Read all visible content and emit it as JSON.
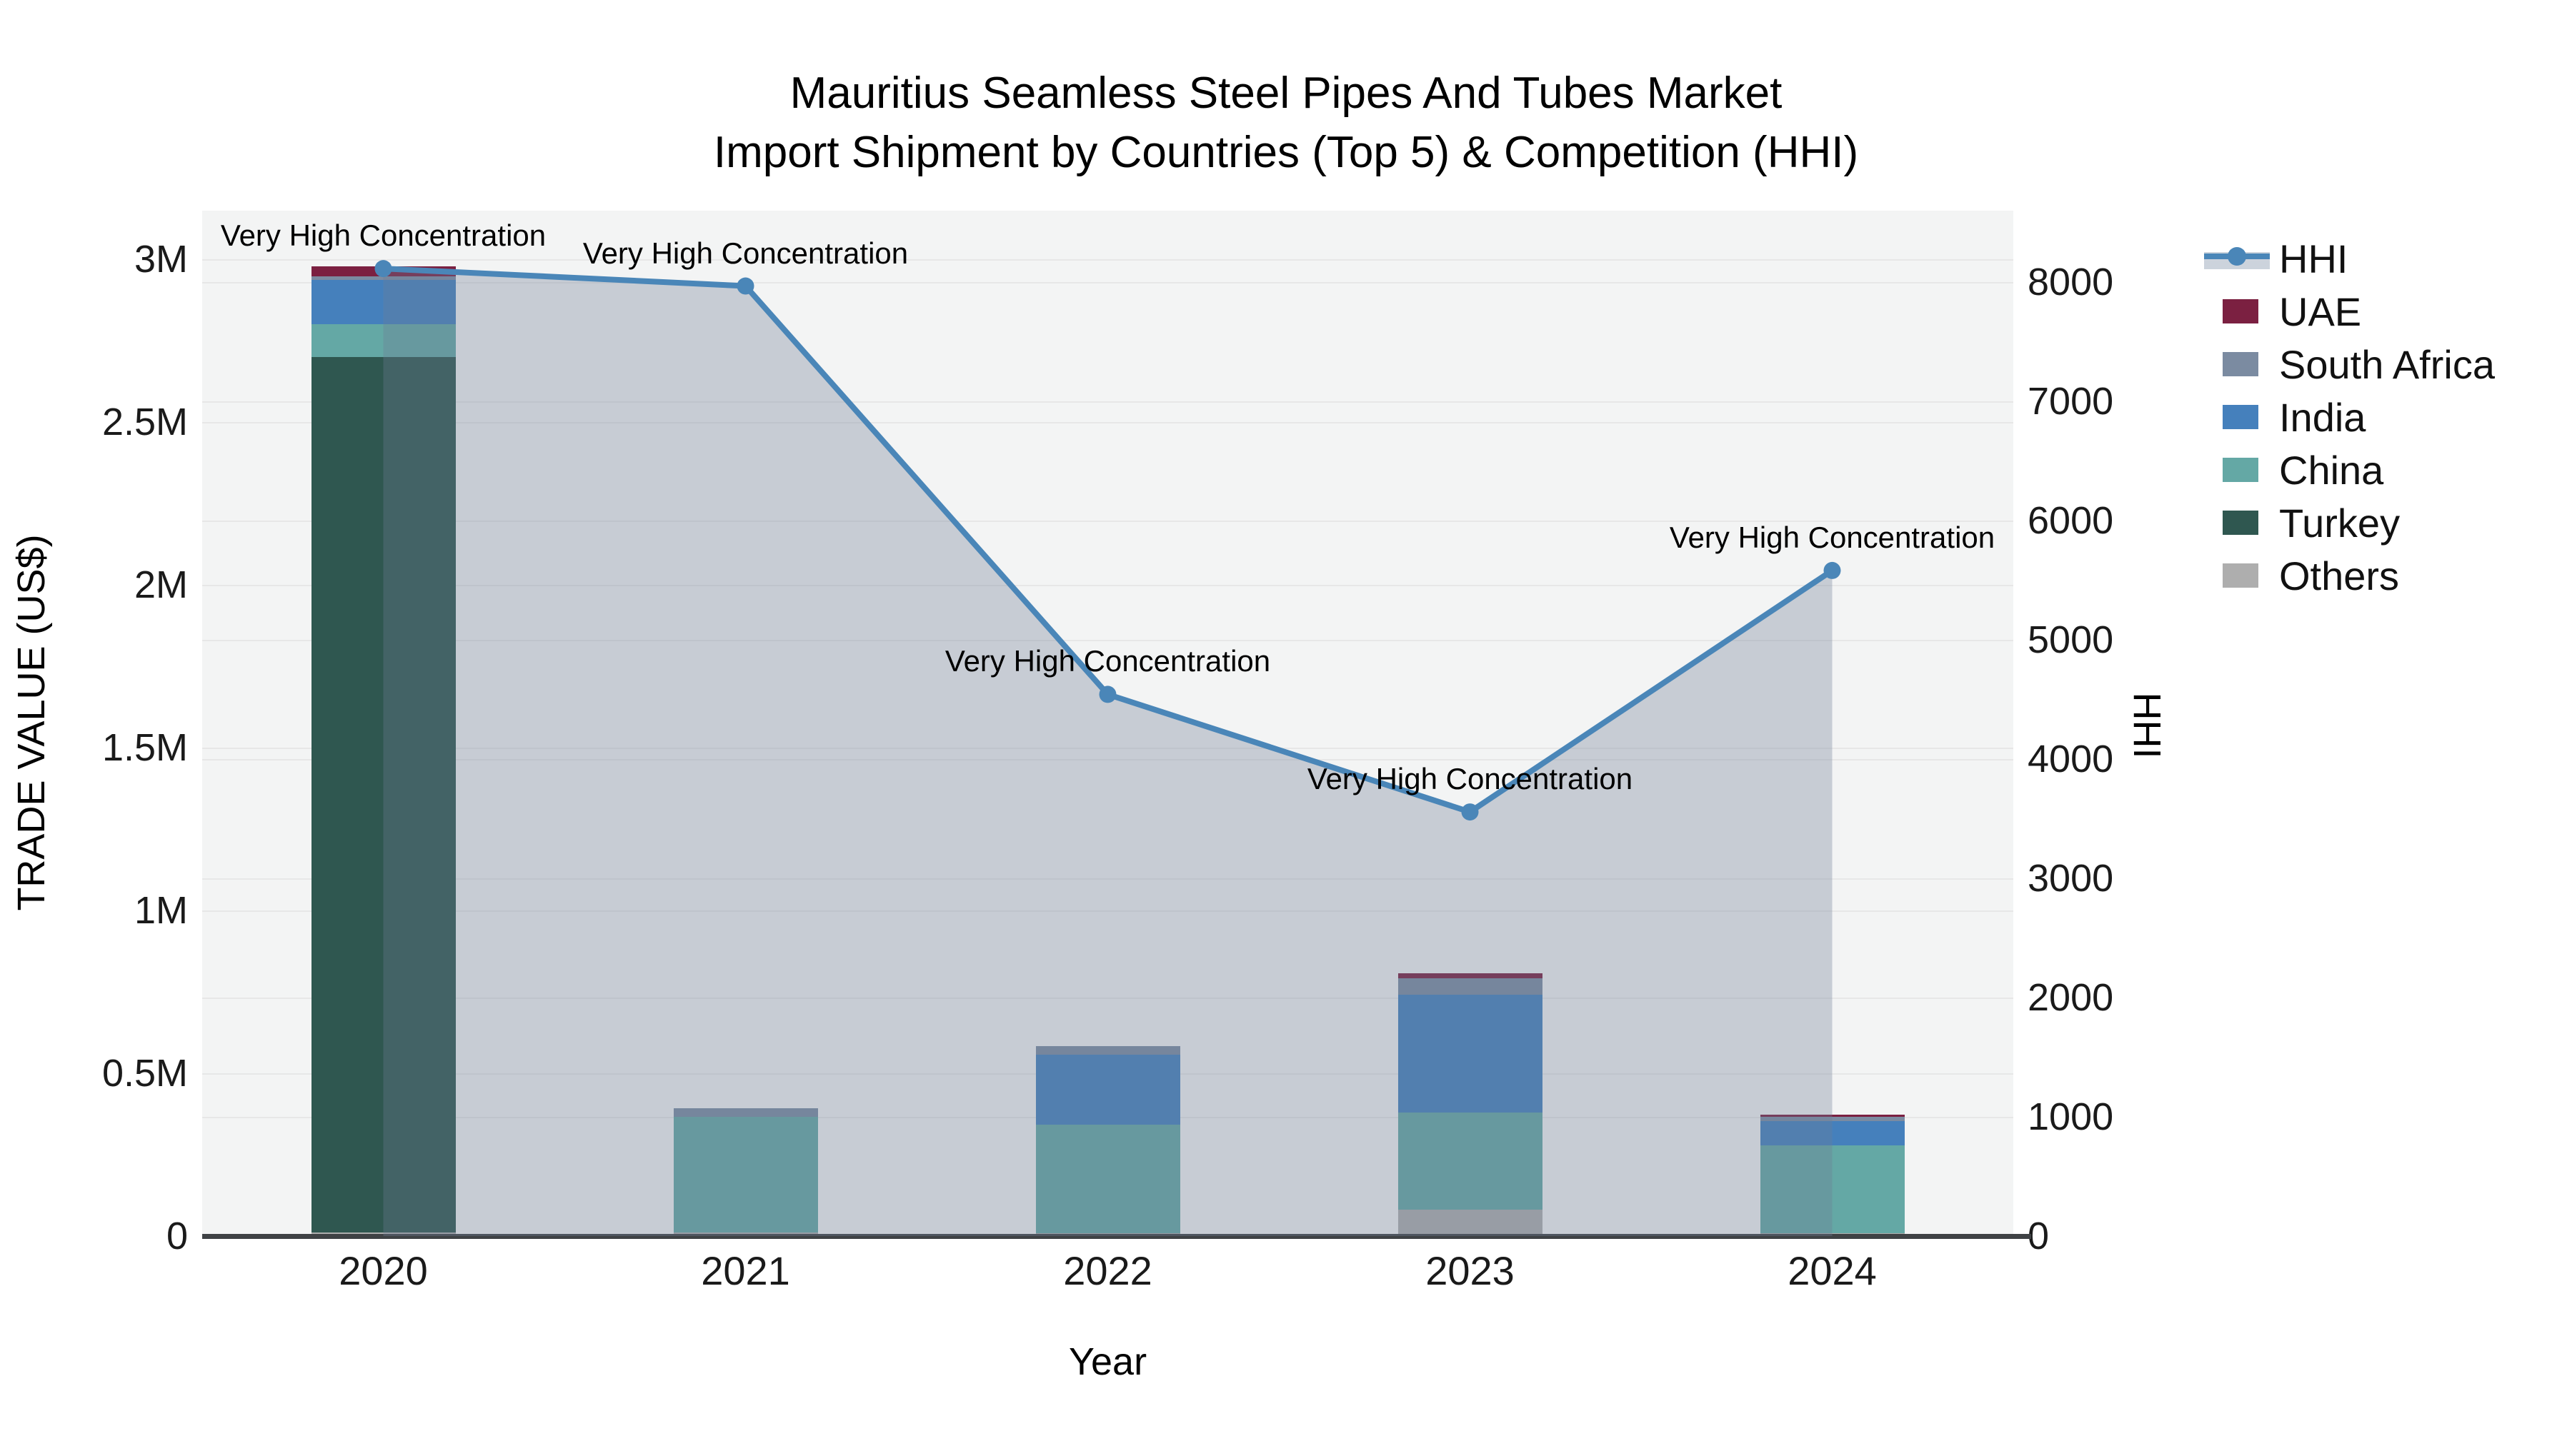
{
  "title": {
    "line1": "Mauritius Seamless Steel Pipes And Tubes Market",
    "line2": "Import Shipment by Countries (Top 5) & Competition (HHI)"
  },
  "axes": {
    "x": {
      "label": "Year",
      "categories": [
        "2020",
        "2021",
        "2022",
        "2023",
        "2024"
      ]
    },
    "y_left": {
      "label": "TRADE VALUE (US$)",
      "ticks": [
        {
          "value": 0,
          "label": "0"
        },
        {
          "value": 500000,
          "label": "0.5M"
        },
        {
          "value": 1000000,
          "label": "1M"
        },
        {
          "value": 1500000,
          "label": "1.5M"
        },
        {
          "value": 2000000,
          "label": "2M"
        },
        {
          "value": 2500000,
          "label": "2.5M"
        },
        {
          "value": 3000000,
          "label": "3M"
        }
      ],
      "range": [
        0,
        3150000
      ]
    },
    "y_right": {
      "label": "HHI",
      "ticks": [
        {
          "value": 0,
          "label": "0"
        },
        {
          "value": 1000,
          "label": "1000"
        },
        {
          "value": 2000,
          "label": "2000"
        },
        {
          "value": 3000,
          "label": "3000"
        },
        {
          "value": 4000,
          "label": "4000"
        },
        {
          "value": 5000,
          "label": "5000"
        },
        {
          "value": 6000,
          "label": "6000"
        },
        {
          "value": 7000,
          "label": "7000"
        },
        {
          "value": 8000,
          "label": "8000"
        }
      ],
      "range": [
        0,
        8600
      ]
    }
  },
  "legend": [
    {
      "label": "HHI",
      "type": "line",
      "color": "#4a86b8"
    },
    {
      "label": "UAE",
      "type": "swatch",
      "color": "#7b2041"
    },
    {
      "label": "South Africa",
      "type": "swatch",
      "color": "#7b8ba1"
    },
    {
      "label": "India",
      "type": "swatch",
      "color": "#4580bc"
    },
    {
      "label": "China",
      "type": "swatch",
      "color": "#64a8a5"
    },
    {
      "label": "Turkey",
      "type": "swatch",
      "color": "#2f5750"
    },
    {
      "label": "Others",
      "type": "swatch",
      "color": "#aeaeae"
    }
  ],
  "chart_data": {
    "type": "composite-stacked-bar-and-line",
    "x": [
      "2020",
      "2021",
      "2022",
      "2023",
      "2024"
    ],
    "bar_unit": "US$",
    "bar_stack_order_bottom_to_top": [
      "Others",
      "Turkey",
      "China",
      "India",
      "South Africa",
      "UAE"
    ],
    "bar_series": [
      {
        "name": "UAE",
        "color": "#7b2041",
        "values": [
          31000,
          0,
          0,
          15000,
          6000
        ]
      },
      {
        "name": "South Africa",
        "color": "#7b8ba1",
        "values": [
          11000,
          25000,
          26000,
          50000,
          12000
        ]
      },
      {
        "name": "India",
        "color": "#4580bc",
        "values": [
          136000,
          0,
          215000,
          363000,
          76000
        ]
      },
      {
        "name": "China",
        "color": "#64a8a5",
        "values": [
          101000,
          355000,
          335000,
          298000,
          270000
        ]
      },
      {
        "name": "Turkey",
        "color": "#2f5750",
        "values": [
          2690000,
          0,
          0,
          0,
          0
        ]
      },
      {
        "name": "Others",
        "color": "#aeaeae",
        "values": [
          10000,
          12000,
          8000,
          81000,
          8000
        ]
      }
    ],
    "line_series": {
      "name": "HHI",
      "color": "#4a86b8",
      "fill_color": "rgba(108,124,148,0.33)",
      "values": [
        8114,
        7968,
        4543,
        3557,
        5582
      ]
    },
    "annotations": [
      {
        "text": "Very High Concentration",
        "x_index": 0
      },
      {
        "text": "Very High Concentration",
        "x_index": 1
      },
      {
        "text": "Very High Concentration",
        "x_index": 2
      },
      {
        "text": "Very High Concentration",
        "x_index": 3
      },
      {
        "text": "Very High Concentration",
        "x_index": 4
      }
    ],
    "ylim_left": [
      0,
      3150000
    ],
    "ylim_right": [
      0,
      8600
    ],
    "grid": true,
    "legend_position": "right"
  }
}
